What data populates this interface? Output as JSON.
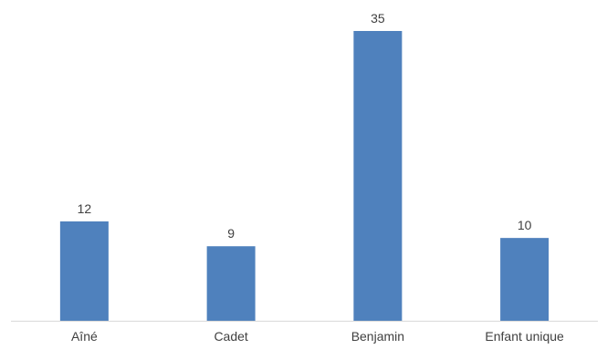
{
  "chart_data": {
    "type": "bar",
    "categories": [
      "Aîné",
      "Cadet",
      "Benjamin",
      "Enfant unique"
    ],
    "values": [
      12,
      9,
      35,
      10
    ],
    "title": "",
    "xlabel": "",
    "ylabel": "",
    "ylim": [
      0,
      35
    ],
    "grid": false,
    "legend": "none",
    "data_labels": true,
    "bar_color": "#4f81bd",
    "axis_color": "#d9d9d9",
    "text_color": "#404040"
  }
}
